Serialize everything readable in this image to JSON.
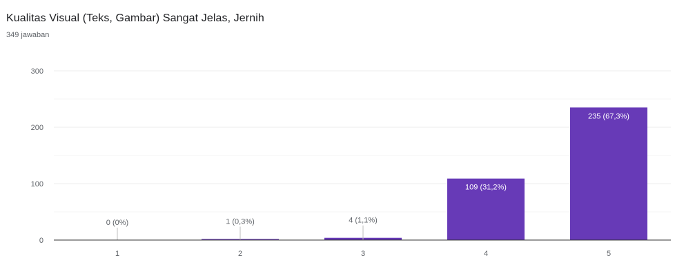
{
  "question": {
    "title": "Kualitas Visual (Teks, Gambar) Sangat Jelas, Jernih",
    "response_count": "349 jawaban"
  },
  "colors": {
    "bar": "#673ab7",
    "grid": "#ececec",
    "axis": "#333333",
    "label_outside": "#5f6368",
    "label_inside": "#ffffff"
  },
  "chart_data": {
    "type": "bar",
    "categories": [
      "1",
      "2",
      "3",
      "4",
      "5"
    ],
    "values": [
      0,
      1,
      4,
      109,
      235
    ],
    "data_labels": [
      "0 (0%)",
      "1 (0,3%)",
      "4 (1,1%)",
      "109 (31,2%)",
      "235 (67,3%)"
    ],
    "title": "",
    "xlabel": "",
    "ylabel": "",
    "ylim": [
      0,
      300
    ],
    "yticks": [
      0,
      100,
      200,
      300
    ],
    "grid": true,
    "legend": "none"
  }
}
